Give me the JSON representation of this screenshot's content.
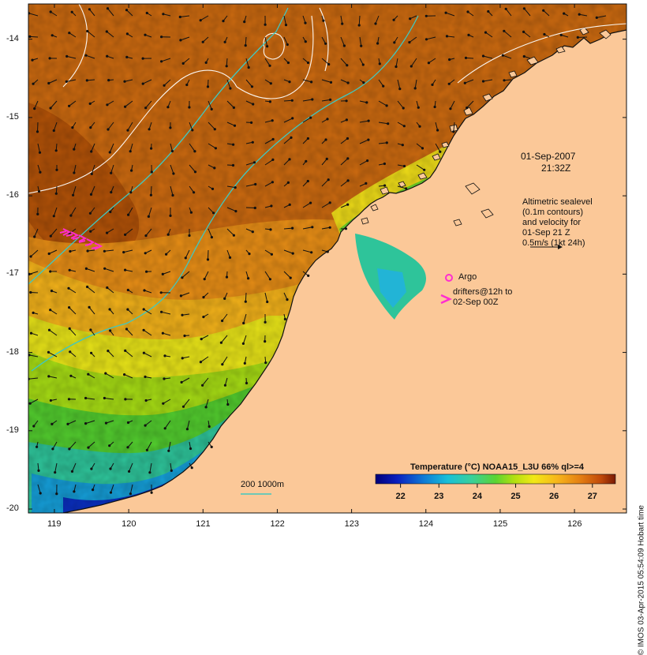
{
  "map": {
    "lon_ticks": [
      "119",
      "120",
      "121",
      "122",
      "123",
      "124",
      "125",
      "126"
    ],
    "lat_ticks": [
      "-14",
      "-15",
      "-16",
      "-17",
      "-18",
      "-19",
      "-20"
    ],
    "lon_range": [
      118.65,
      126.7
    ],
    "lat_range": [
      -20.05,
      -13.55
    ],
    "land_color": "#fbc898",
    "sst_colormap": [
      "#00007a",
      "#0a1fbf",
      "#0e7ad6",
      "#19c0d8",
      "#39d09b",
      "#5bd433",
      "#b4e010",
      "#f2e816",
      "#f7b41a",
      "#e27a12",
      "#c04a0a",
      "#7a1a04"
    ]
  },
  "annotations": {
    "date": "01-Sep-2007",
    "time": "21:32Z",
    "altimetry_line1": "Altimetric sealevel",
    "altimetry_line2": "(0.1m contours)",
    "altimetry_line3": "and velocity for",
    "altimetry_line4": "01-Sep 21 Z",
    "altimetry_line5": "0.5m/s (1kt 24h)",
    "argo_label": "Argo",
    "drifters_line1": "drifters@12h to",
    "drifters_line2": "02-Sep 00Z",
    "isobath_label": "200  1000m"
  },
  "colorbar": {
    "title": "Temperature (°C) NOAA15_L3U 66% ql>=4",
    "range": [
      21.35,
      27.6
    ],
    "labels": [
      "22",
      "23",
      "24",
      "25",
      "26",
      "27"
    ]
  },
  "credit": "© IMOS 03-Apr-2015 05:54:09 Hobart time"
}
